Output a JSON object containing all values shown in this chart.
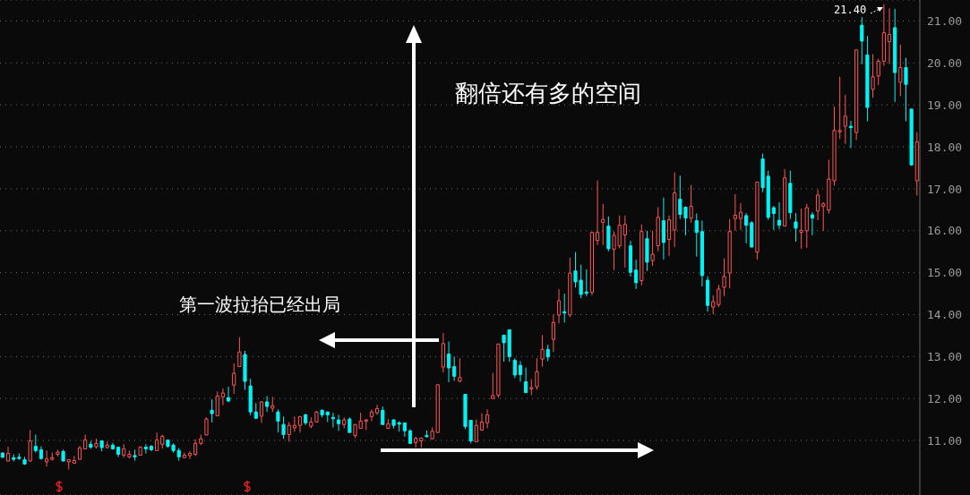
{
  "chart_data": {
    "type": "candlestick",
    "annotations": [
      "翻倍还有多的空间",
      "第一波拉抬已经出局",
      "21.40"
    ],
    "categories": [
      null,
      null,
      null,
      null,
      null,
      null,
      null,
      null,
      null,
      null,
      null,
      null,
      null,
      null,
      null,
      null,
      null,
      null,
      null,
      null,
      null,
      null,
      null,
      null,
      null,
      null,
      null,
      null,
      null,
      null,
      null,
      null,
      null,
      null,
      null,
      null,
      null,
      null,
      null,
      null,
      null,
      null,
      null,
      null,
      null,
      null,
      null,
      null,
      null,
      null,
      null,
      null,
      null,
      null,
      null,
      null,
      null,
      null,
      null,
      null,
      null,
      null,
      null,
      null,
      null,
      null,
      null,
      null,
      null,
      null,
      null,
      null,
      null,
      null,
      null,
      null,
      null,
      null,
      null,
      null,
      null,
      null,
      null,
      null,
      null,
      null,
      null,
      null,
      null,
      null,
      null,
      null,
      null,
      null,
      null,
      null,
      null,
      null,
      null,
      null,
      null,
      null,
      null,
      null,
      null,
      null,
      null,
      null,
      null,
      null,
      null,
      null,
      null,
      null,
      null,
      null,
      null,
      null,
      null,
      null,
      null,
      null,
      null,
      null,
      null,
      null,
      null,
      null,
      null,
      null,
      null,
      null,
      null,
      null,
      null,
      null,
      null,
      null,
      null,
      null,
      null,
      null,
      null,
      null,
      null,
      null,
      null,
      null,
      null,
      null,
      null,
      null,
      null,
      null,
      null,
      null,
      null,
      null,
      null,
      null,
      null,
      null,
      null,
      null,
      null,
      null,
      null
    ],
    "ohlc": [
      [
        10.7,
        10.72,
        10.58,
        10.6
      ],
      [
        10.51,
        10.85,
        10.5,
        10.69
      ],
      [
        10.59,
        10.67,
        10.5,
        10.55
      ],
      [
        10.6,
        10.69,
        10.54,
        10.57
      ],
      [
        10.54,
        10.61,
        10.42,
        10.44
      ],
      [
        10.51,
        11.25,
        10.5,
        10.99
      ],
      [
        10.86,
        11.14,
        10.71,
        10.76
      ],
      [
        10.78,
        10.86,
        10.54,
        10.57
      ],
      [
        10.49,
        10.76,
        10.38,
        10.56
      ],
      [
        10.55,
        10.71,
        10.52,
        10.59
      ],
      [
        10.67,
        10.78,
        10.62,
        10.72
      ],
      [
        10.74,
        10.78,
        10.5,
        10.51
      ],
      [
        10.49,
        10.54,
        10.31,
        10.54
      ],
      [
        10.46,
        10.63,
        10.46,
        10.52
      ],
      [
        10.55,
        10.87,
        10.55,
        10.82
      ],
      [
        10.8,
        11.14,
        10.79,
        11.01
      ],
      [
        10.91,
        10.99,
        10.8,
        10.84
      ],
      [
        10.85,
        11.04,
        10.81,
        10.93
      ],
      [
        10.99,
        10.99,
        10.74,
        10.83
      ],
      [
        10.83,
        10.97,
        10.81,
        10.89
      ],
      [
        10.89,
        10.94,
        10.78,
        10.8
      ],
      [
        10.84,
        10.84,
        10.61,
        10.67
      ],
      [
        10.65,
        10.91,
        10.59,
        10.8
      ],
      [
        10.61,
        10.76,
        10.57,
        10.67
      ],
      [
        10.64,
        10.78,
        10.52,
        10.61
      ],
      [
        10.65,
        10.86,
        10.64,
        10.84
      ],
      [
        10.84,
        10.91,
        10.69,
        10.8
      ],
      [
        10.86,
        10.89,
        10.74,
        10.78
      ],
      [
        10.76,
        11.19,
        10.76,
        11.01
      ],
      [
        10.91,
        11.14,
        10.81,
        11.1
      ],
      [
        11.01,
        11.01,
        10.83,
        10.86
      ],
      [
        10.89,
        10.93,
        10.71,
        10.76
      ],
      [
        10.76,
        10.82,
        10.52,
        10.61
      ],
      [
        10.59,
        10.71,
        10.59,
        10.65
      ],
      [
        10.64,
        10.74,
        10.56,
        10.69
      ],
      [
        10.67,
        11.03,
        10.63,
        10.93
      ],
      [
        10.93,
        11.14,
        10.89,
        11.04
      ],
      [
        11.13,
        11.55,
        11.13,
        11.51
      ],
      [
        11.72,
        11.98,
        11.43,
        11.64
      ],
      [
        11.59,
        12.17,
        11.58,
        12.06
      ],
      [
        12.04,
        12.24,
        11.84,
        12.13
      ],
      [
        12.02,
        12.28,
        11.91,
        11.94
      ],
      [
        12.32,
        12.84,
        12.11,
        12.6
      ],
      [
        12.76,
        13.46,
        12.76,
        13.11
      ],
      [
        13.05,
        13.14,
        12.21,
        12.41
      ],
      [
        12.3,
        12.47,
        11.6,
        11.68
      ],
      [
        11.68,
        11.89,
        11.51,
        11.53
      ],
      [
        11.58,
        11.94,
        11.42,
        11.92
      ],
      [
        11.92,
        12.06,
        11.68,
        11.81
      ],
      [
        11.77,
        12.04,
        11.68,
        11.83
      ],
      [
        11.68,
        11.74,
        11.19,
        11.46
      ],
      [
        11.38,
        11.57,
        11.04,
        11.14
      ],
      [
        11.14,
        11.44,
        10.97,
        11.36
      ],
      [
        11.3,
        11.57,
        11.21,
        11.36
      ],
      [
        11.36,
        11.57,
        11.19,
        11.57
      ],
      [
        11.61,
        11.64,
        11.37,
        11.42
      ],
      [
        11.34,
        11.55,
        11.29,
        11.44
      ],
      [
        11.44,
        11.7,
        11.44,
        11.68
      ],
      [
        11.72,
        11.74,
        11.55,
        11.61
      ],
      [
        11.68,
        11.68,
        11.44,
        11.61
      ],
      [
        11.55,
        11.66,
        11.31,
        11.53
      ],
      [
        11.49,
        11.61,
        11.23,
        11.4
      ],
      [
        11.38,
        11.55,
        11.29,
        11.49
      ],
      [
        11.51,
        11.55,
        11.19,
        11.19
      ],
      [
        11.12,
        11.38,
        11.06,
        11.38
      ],
      [
        11.29,
        11.66,
        11.29,
        11.46
      ],
      [
        11.46,
        11.51,
        11.25,
        11.49
      ],
      [
        11.57,
        11.74,
        11.46,
        11.68
      ],
      [
        11.66,
        11.85,
        11.61,
        11.76
      ],
      [
        11.72,
        11.81,
        11.38,
        11.38
      ],
      [
        11.29,
        11.51,
        11.29,
        11.4
      ],
      [
        11.49,
        11.51,
        11.29,
        11.36
      ],
      [
        11.42,
        11.46,
        11.21,
        11.4
      ],
      [
        11.42,
        11.42,
        11.09,
        11.23
      ],
      [
        11.23,
        11.27,
        10.93,
        10.93
      ],
      [
        10.95,
        11.09,
        10.83,
        11.05
      ],
      [
        10.99,
        11.06,
        10.83,
        11.06
      ],
      [
        11.12,
        11.24,
        11.08,
        11.1
      ],
      [
        11.04,
        11.31,
        11.04,
        11.22
      ],
      [
        11.19,
        12.33,
        11.19,
        12.33
      ],
      [
        12.75,
        13.56,
        12.62,
        13.31
      ],
      [
        13.06,
        13.36,
        12.39,
        12.73
      ],
      [
        12.76,
        13.0,
        12.42,
        12.53
      ],
      [
        12.41,
        12.96,
        12.39,
        12.5
      ],
      [
        12.1,
        12.1,
        11.27,
        11.33
      ],
      [
        11.48,
        11.48,
        10.93,
        10.99
      ],
      [
        10.97,
        11.5,
        10.97,
        11.36
      ],
      [
        11.25,
        11.65,
        11.23,
        11.44
      ],
      [
        11.42,
        11.74,
        11.29,
        11.61
      ],
      [
        12.0,
        12.61,
        12.0,
        12.07
      ],
      [
        12.08,
        13.3,
        12.02,
        13.3
      ],
      [
        13.51,
        13.51,
        12.88,
        13.33
      ],
      [
        13.64,
        13.64,
        12.88,
        13.0
      ],
      [
        12.91,
        12.96,
        12.49,
        12.56
      ],
      [
        12.79,
        12.89,
        12.4,
        12.57
      ],
      [
        12.4,
        12.74,
        12.14,
        12.14
      ],
      [
        12.24,
        12.46,
        12.08,
        12.26
      ],
      [
        12.28,
        12.96,
        12.21,
        12.64
      ],
      [
        12.94,
        13.51,
        12.76,
        13.17
      ],
      [
        13.17,
        13.28,
        12.89,
        12.99
      ],
      [
        13.41,
        14.0,
        13.11,
        13.81
      ],
      [
        13.99,
        14.61,
        13.79,
        14.33
      ],
      [
        14.07,
        14.5,
        13.81,
        14.05
      ],
      [
        13.99,
        15.36,
        13.94,
        14.99
      ],
      [
        15.04,
        15.49,
        14.65,
        14.78
      ],
      [
        14.82,
        15.19,
        14.39,
        14.48
      ],
      [
        14.54,
        15.08,
        14.44,
        14.51
      ],
      [
        14.53,
        15.96,
        14.46,
        15.96
      ],
      [
        15.77,
        17.2,
        15.66,
        15.96
      ],
      [
        16.2,
        16.64,
        15.66,
        16.27
      ],
      [
        16.11,
        16.34,
        15.51,
        15.57
      ],
      [
        15.56,
        15.98,
        15.06,
        15.89
      ],
      [
        15.64,
        16.36,
        15.58,
        16.13
      ],
      [
        15.9,
        16.36,
        15.12,
        16.15
      ],
      [
        15.64,
        15.76,
        14.91,
        15.01
      ],
      [
        15.06,
        15.31,
        14.61,
        14.76
      ],
      [
        14.81,
        16.15,
        14.7,
        15.98
      ],
      [
        15.81,
        16.0,
        15.04,
        15.25
      ],
      [
        15.29,
        16.0,
        15.16,
        15.44
      ],
      [
        15.64,
        16.56,
        15.51,
        16.32
      ],
      [
        16.24,
        16.79,
        15.31,
        15.72
      ],
      [
        15.79,
        16.36,
        15.4,
        16.26
      ],
      [
        16.02,
        17.39,
        15.61,
        16.9
      ],
      [
        16.75,
        17.31,
        16.28,
        16.39
      ],
      [
        16.56,
        16.58,
        15.89,
        16.3
      ],
      [
        16.3,
        17.09,
        16.19,
        16.58
      ],
      [
        16.24,
        16.41,
        15.38,
        15.96
      ],
      [
        15.98,
        16.24,
        14.67,
        14.93
      ],
      [
        14.82,
        14.91,
        14.07,
        14.22
      ],
      [
        14.18,
        14.46,
        14.01,
        14.31
      ],
      [
        14.24,
        14.71,
        14.18,
        14.61
      ],
      [
        14.65,
        15.34,
        14.44,
        14.91
      ],
      [
        14.99,
        16.28,
        14.63,
        15.98
      ],
      [
        16.29,
        16.87,
        16.0,
        16.37
      ],
      [
        16.29,
        16.66,
        16.02,
        16.44
      ],
      [
        16.36,
        16.42,
        15.7,
        16.13
      ],
      [
        16.19,
        16.23,
        15.61,
        15.61
      ],
      [
        15.49,
        17.16,
        15.31,
        17.16
      ],
      [
        17.71,
        17.84,
        16.92,
        17.03
      ],
      [
        17.3,
        17.43,
        16.26,
        16.32
      ],
      [
        16.55,
        16.59,
        16.02,
        16.41
      ],
      [
        16.25,
        16.68,
        16.04,
        16.13
      ],
      [
        16.11,
        17.47,
        16.11,
        17.26
      ],
      [
        17.13,
        17.43,
        16.28,
        16.43
      ],
      [
        16.21,
        16.42,
        15.74,
        16.06
      ],
      [
        15.96,
        16.53,
        15.57,
        16.01
      ],
      [
        16.0,
        16.64,
        15.59,
        16.55
      ],
      [
        16.38,
        16.44,
        15.89,
        16.3
      ],
      [
        16.47,
        16.98,
        16.25,
        16.85
      ],
      [
        16.58,
        16.68,
        16.0,
        16.64
      ],
      [
        16.49,
        17.69,
        16.41,
        17.23
      ],
      [
        17.19,
        18.96,
        17.07,
        18.39
      ],
      [
        18.36,
        19.67,
        18.19,
        18.39
      ],
      [
        18.49,
        19.24,
        18.07,
        18.73
      ],
      [
        18.49,
        18.62,
        17.97,
        18.47
      ],
      [
        18.34,
        20.31,
        18.16,
        20.31
      ],
      [
        20.9,
        21.09,
        19.97,
        20.52
      ],
      [
        20.19,
        20.64,
        18.61,
        18.94
      ],
      [
        19.37,
        20.21,
        19.17,
        19.67
      ],
      [
        19.69,
        20.1,
        19.47,
        20.04
      ],
      [
        20.04,
        21.4,
        19.93,
        20.72
      ],
      [
        20.51,
        21.3,
        19.97,
        20.68
      ],
      [
        20.84,
        21.29,
        19.07,
        19.77
      ],
      [
        19.54,
        20.44,
        19.21,
        19.89
      ],
      [
        19.89,
        20.12,
        18.61,
        19.49
      ],
      [
        18.9,
        18.9,
        17.55,
        17.57
      ],
      [
        17.19,
        18.35,
        16.84,
        18.12
      ]
    ],
    "ylim": [
      9.7,
      21.5
    ],
    "yticks": [
      {
        "value": 11,
        "label": "11.00"
      },
      {
        "value": 12,
        "label": "12.00"
      },
      {
        "value": 13,
        "label": "13.00"
      },
      {
        "value": 14,
        "label": "14.00"
      },
      {
        "value": 15,
        "label": "15.00"
      },
      {
        "value": 16,
        "label": "16.00"
      },
      {
        "value": 17,
        "label": "17.00"
      },
      {
        "value": 18,
        "label": "18.00"
      },
      {
        "value": 19,
        "label": "19.00"
      },
      {
        "value": 20,
        "label": "20.00"
      },
      {
        "value": 21,
        "label": "21.00"
      }
    ],
    "grid": "y",
    "tick_labels": "y"
  }
}
